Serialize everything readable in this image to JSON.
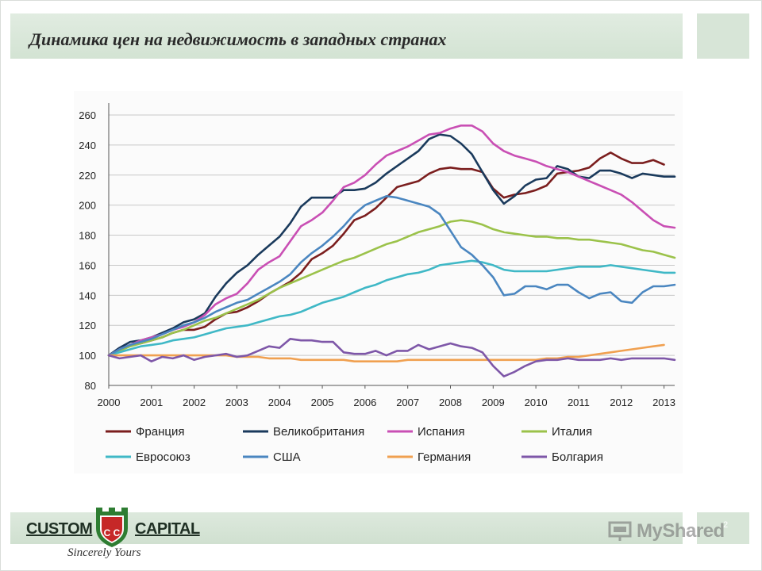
{
  "slide": {
    "title": "Динамика цен на недвижимость в западных странах",
    "page_number": "2",
    "logo_left": "CUSTOM",
    "logo_right": "CAPITAL",
    "logo_letters": "C C",
    "tagline": "Sincerely Yours",
    "watermark": "MyShared",
    "colors": {
      "title_band": "#d8e6d8",
      "shield_red": "#c62828",
      "shield_green": "#2e7d32"
    }
  },
  "chart_data": {
    "type": "line",
    "x": [
      2000,
      2000.25,
      2000.5,
      2000.75,
      2001,
      2001.25,
      2001.5,
      2001.75,
      2002,
      2002.25,
      2002.5,
      2002.75,
      2003,
      2003.25,
      2003.5,
      2003.75,
      2004,
      2004.25,
      2004.5,
      2004.75,
      2005,
      2005.25,
      2005.5,
      2005.75,
      2006,
      2006.25,
      2006.5,
      2006.75,
      2007,
      2007.25,
      2007.5,
      2007.75,
      2008,
      2008.25,
      2008.5,
      2008.75,
      2009,
      2009.25,
      2009.5,
      2009.75,
      2010,
      2010.25,
      2010.5,
      2010.75,
      2011,
      2011.25,
      2011.5,
      2011.75,
      2012,
      2012.25,
      2012.5,
      2012.75,
      2013,
      2013.25
    ],
    "xticks": [
      "2000",
      "2001",
      "2002",
      "2003",
      "2004",
      "2005",
      "2006",
      "2007",
      "2008",
      "2009",
      "2010",
      "2011",
      "2012",
      "2013"
    ],
    "yticks": [
      "80",
      "100",
      "120",
      "140",
      "160",
      "180",
      "200",
      "220",
      "240",
      "260"
    ],
    "ylim": [
      80,
      260
    ],
    "xlim": [
      2000,
      2013.25
    ],
    "grid": true,
    "legend_position": "bottom",
    "series": [
      {
        "name": "Франция",
        "color": "#7b1e1e",
        "values": [
          100,
          104,
          107,
          108,
          110,
          112,
          115,
          117,
          117,
          119,
          124,
          128,
          129,
          132,
          136,
          141,
          145,
          149,
          155,
          164,
          168,
          173,
          181,
          190,
          193,
          198,
          205,
          212,
          214,
          216,
          221,
          224,
          225,
          224,
          224,
          222,
          211,
          205,
          207,
          208,
          210,
          213,
          221,
          222,
          223,
          225,
          231,
          235,
          231,
          228,
          228,
          230,
          227,
          null
        ]
      },
      {
        "name": "Великобритания",
        "color": "#1a3a5c",
        "values": [
          100,
          105,
          109,
          110,
          112,
          115,
          118,
          122,
          124,
          128,
          139,
          148,
          155,
          160,
          167,
          173,
          179,
          188,
          199,
          205,
          205,
          205,
          210,
          210,
          211,
          215,
          221,
          226,
          231,
          236,
          244,
          247,
          246,
          241,
          234,
          222,
          210,
          201,
          206,
          213,
          217,
          218,
          226,
          224,
          219,
          218,
          223,
          223,
          221,
          218,
          221,
          220,
          219,
          219
        ]
      },
      {
        "name": "Испания",
        "color": "#c94fb4",
        "values": [
          100,
          104,
          107,
          110,
          112,
          114,
          117,
          119,
          122,
          127,
          134,
          138,
          141,
          148,
          157,
          162,
          166,
          176,
          186,
          190,
          195,
          203,
          212,
          215,
          220,
          227,
          233,
          236,
          239,
          243,
          247,
          248,
          251,
          253,
          253,
          249,
          241,
          236,
          233,
          231,
          229,
          226,
          224,
          222,
          219,
          216,
          213,
          210,
          207,
          202,
          196,
          190,
          186,
          185
        ]
      },
      {
        "name": "Италия",
        "color": "#9bc24a",
        "values": [
          100,
          103,
          106,
          108,
          110,
          112,
          115,
          117,
          120,
          123,
          125,
          128,
          131,
          134,
          137,
          141,
          145,
          148,
          151,
          154,
          157,
          160,
          163,
          165,
          168,
          171,
          174,
          176,
          179,
          182,
          184,
          186,
          189,
          190,
          189,
          187,
          184,
          182,
          181,
          180,
          179,
          179,
          178,
          178,
          177,
          177,
          176,
          175,
          174,
          172,
          170,
          169,
          167,
          165
        ]
      },
      {
        "name": "Евросоюз",
        "color": "#3fb8c6",
        "values": [
          100,
          102,
          104,
          106,
          107,
          108,
          110,
          111,
          112,
          114,
          116,
          118,
          119,
          120,
          122,
          124,
          126,
          127,
          129,
          132,
          135,
          137,
          139,
          142,
          145,
          147,
          150,
          152,
          154,
          155,
          157,
          160,
          161,
          162,
          163,
          162,
          160,
          157,
          156,
          156,
          156,
          156,
          157,
          158,
          159,
          159,
          159,
          160,
          159,
          158,
          157,
          156,
          155,
          155
        ]
      },
      {
        "name": "США",
        "color": "#4a86c0",
        "values": [
          100,
          104,
          107,
          109,
          111,
          114,
          117,
          120,
          122,
          125,
          129,
          132,
          135,
          137,
          141,
          145,
          149,
          154,
          162,
          168,
          173,
          179,
          186,
          194,
          200,
          203,
          206,
          205,
          203,
          201,
          199,
          194,
          183,
          172,
          167,
          160,
          152,
          140,
          141,
          146,
          146,
          144,
          147,
          147,
          142,
          138,
          141,
          142,
          136,
          135,
          142,
          146,
          146,
          147
        ]
      },
      {
        "name": "Германия",
        "color": "#f0a050",
        "values": [
          100,
          100,
          100,
          100,
          100,
          100,
          100,
          100,
          100,
          100,
          100,
          100,
          99,
          99,
          99,
          98,
          98,
          98,
          97,
          97,
          97,
          97,
          97,
          96,
          96,
          96,
          96,
          96,
          97,
          97,
          97,
          97,
          97,
          97,
          97,
          97,
          97,
          97,
          97,
          97,
          97,
          98,
          98,
          99,
          99,
          100,
          101,
          102,
          103,
          104,
          105,
          106,
          107,
          null
        ]
      },
      {
        "name": "Болгария",
        "color": "#7e57a8",
        "values": [
          100,
          98,
          99,
          100,
          96,
          99,
          98,
          100,
          97,
          99,
          100,
          101,
          99,
          100,
          103,
          106,
          105,
          111,
          110,
          110,
          109,
          109,
          102,
          101,
          101,
          103,
          100,
          103,
          103,
          107,
          104,
          106,
          108,
          106,
          105,
          102,
          93,
          86,
          89,
          93,
          96,
          97,
          97,
          98,
          97,
          97,
          97,
          98,
          97,
          98,
          98,
          98,
          98,
          97
        ]
      }
    ]
  }
}
